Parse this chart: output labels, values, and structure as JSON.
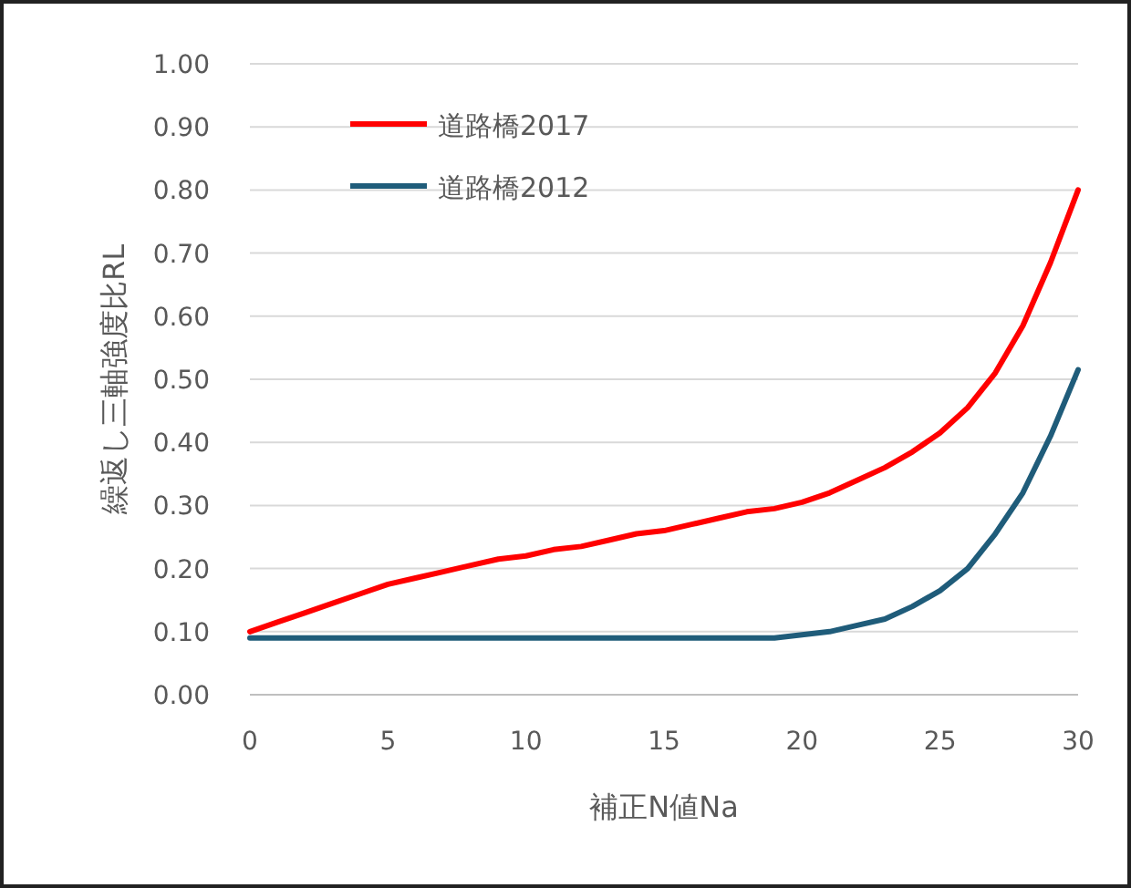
{
  "chart_data": {
    "type": "line",
    "xlabel": "補正N値Na",
    "ylabel": "繰返し三軸強度比RL",
    "x": [
      0,
      1,
      2,
      3,
      4,
      5,
      6,
      7,
      8,
      9,
      10,
      11,
      12,
      13,
      14,
      15,
      16,
      17,
      18,
      19,
      20,
      21,
      22,
      23,
      24,
      25,
      26,
      27,
      28,
      29,
      30
    ],
    "series": [
      {
        "name": "道路橋2017",
        "color": "#ff0000",
        "values": [
          0.1,
          0.115,
          0.13,
          0.145,
          0.16,
          0.175,
          0.185,
          0.195,
          0.205,
          0.215,
          0.22,
          0.23,
          0.235,
          0.245,
          0.255,
          0.26,
          0.27,
          0.28,
          0.29,
          0.295,
          0.305,
          0.32,
          0.34,
          0.36,
          0.385,
          0.415,
          0.455,
          0.51,
          0.585,
          0.685,
          0.8
        ]
      },
      {
        "name": "道路橋2012",
        "color": "#1f5c7a",
        "values": [
          0.09,
          0.09,
          0.09,
          0.09,
          0.09,
          0.09,
          0.09,
          0.09,
          0.09,
          0.09,
          0.09,
          0.09,
          0.09,
          0.09,
          0.09,
          0.09,
          0.09,
          0.09,
          0.09,
          0.09,
          0.095,
          0.1,
          0.11,
          0.12,
          0.14,
          0.165,
          0.2,
          0.255,
          0.32,
          0.41,
          0.515
        ]
      }
    ],
    "xlim": [
      0,
      30
    ],
    "ylim": [
      0,
      1
    ],
    "xticks": [
      0,
      5,
      10,
      15,
      20,
      25,
      30
    ],
    "yticks": [
      {
        "value": 0,
        "label": "0.00"
      },
      {
        "value": 0.1,
        "label": "0.10"
      },
      {
        "value": 0.2,
        "label": "0.20"
      },
      {
        "value": 0.3,
        "label": "0.30"
      },
      {
        "value": 0.4,
        "label": "0.40"
      },
      {
        "value": 0.5,
        "label": "0.50"
      },
      {
        "value": 0.6,
        "label": "0.60"
      },
      {
        "value": 0.7,
        "label": "0.70"
      },
      {
        "value": 0.8,
        "label": "0.80"
      },
      {
        "value": 0.9,
        "label": "0.90"
      },
      {
        "value": 1,
        "label": "1.00"
      }
    ],
    "grid": "y",
    "legend": "top left",
    "marker": "none",
    "line_style": "solid"
  }
}
